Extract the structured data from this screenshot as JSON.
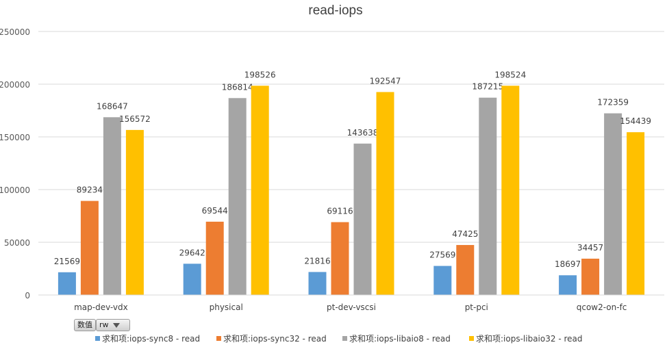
{
  "chart_data": {
    "type": "bar",
    "title": "read-iops",
    "categories": [
      "map-dev-vdx",
      "physical",
      "pt-dev-vscsi",
      "pt-pci",
      "qcow2-on-fc"
    ],
    "series": [
      {
        "name": "求和项:iops-sync8 - read",
        "color": "#5b9bd5",
        "values": [
          21569,
          29642,
          21816,
          27569,
          18697
        ]
      },
      {
        "name": "求和项:iops-sync32 - read",
        "color": "#ed7d31",
        "values": [
          89234,
          69544,
          69116,
          47425,
          34457
        ]
      },
      {
        "name": "求和项:iops-libaio8 - read",
        "color": "#a5a5a5",
        "values": [
          168647,
          186814,
          143638,
          187215,
          172359
        ]
      },
      {
        "name": "求和项:iops-libaio32 - read",
        "color": "#ffc000",
        "values": [
          156572,
          198526,
          192547,
          198524,
          154439
        ]
      }
    ],
    "ylim": [
      0,
      250000
    ],
    "yticks": [
      "0",
      "50000",
      "100000",
      "150000",
      "200000",
      "250000"
    ],
    "grid": true,
    "legend": "bottom"
  },
  "pivot": {
    "values_button": "数值",
    "field_button": "rw"
  }
}
